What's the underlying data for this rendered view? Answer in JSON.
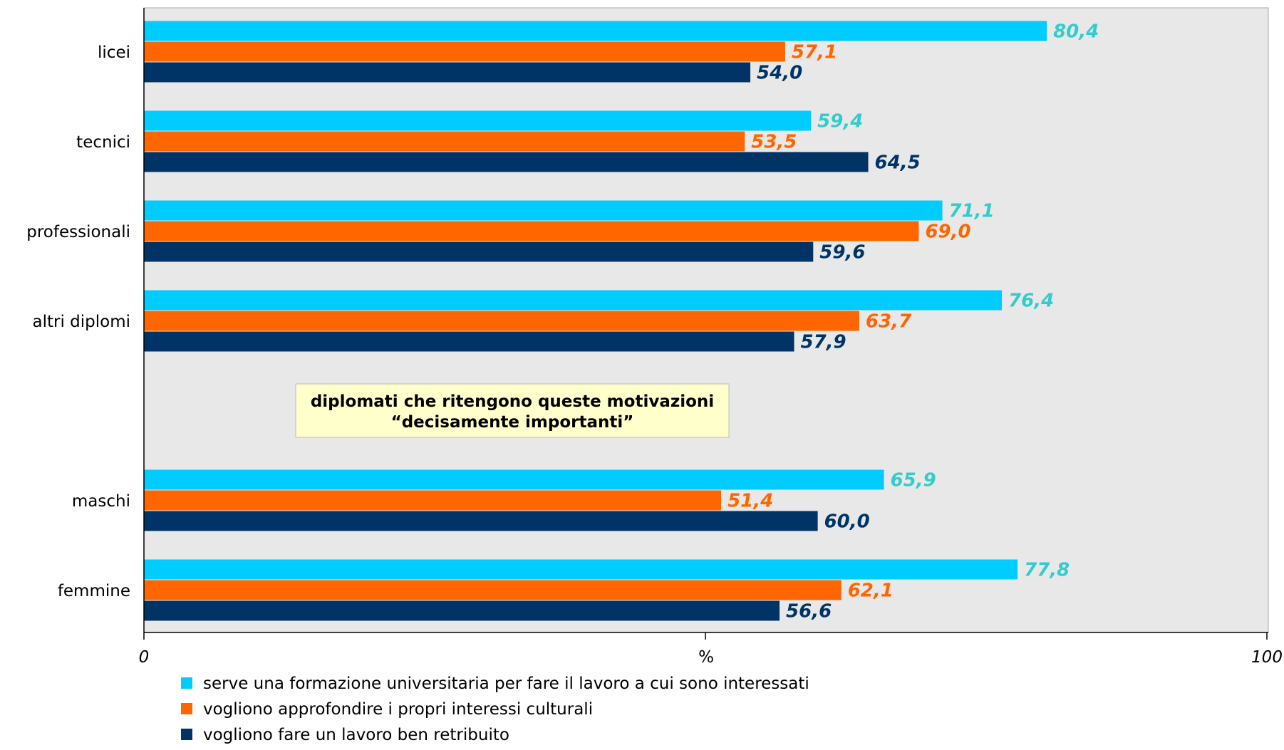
{
  "chart_data": {
    "type": "bar",
    "orientation": "horizontal",
    "categories": [
      "licei",
      "tecnici",
      "professionali",
      "altri diplomi",
      "",
      "maschi",
      "femmine"
    ],
    "series": [
      {
        "name": "serve una formazione universitaria per fare il lavoro a cui sono interessati",
        "color": "#00ccff",
        "label_color": "#33cccc",
        "values": [
          80.4,
          59.4,
          71.1,
          76.4,
          null,
          65.9,
          77.8
        ]
      },
      {
        "name": "vogliono approfondire i propri interessi culturali",
        "color": "#ff6600",
        "label_color": "#ff6600",
        "values": [
          57.1,
          53.5,
          69.0,
          63.7,
          null,
          51.4,
          62.1
        ]
      },
      {
        "name": "vogliono fare un lavoro ben retribuito",
        "color": "#003366",
        "label_color": "#003366",
        "values": [
          54.0,
          64.5,
          59.6,
          57.9,
          null,
          60.0,
          56.6
        ]
      }
    ],
    "value_labels": [
      [
        "80,4",
        "59,4",
        "71,1",
        "76,4",
        "",
        "65,9",
        "77,8"
      ],
      [
        "57,1",
        "53,5",
        "69,0",
        "63,7",
        "",
        "51,4",
        "62,1"
      ],
      [
        "54,0",
        "64,5",
        "59,6",
        "57,9",
        "",
        "60,0",
        "56,6"
      ]
    ],
    "xlim": [
      0,
      100
    ],
    "x_ticks": [
      "0",
      "100"
    ],
    "xlabel": "%",
    "annotation": [
      "diplomati che ritengono queste motivazioni",
      "“decisamente importanti”"
    ],
    "plot_background": "#e8e8e8",
    "legend_position": "bottom",
    "grid": false
  }
}
